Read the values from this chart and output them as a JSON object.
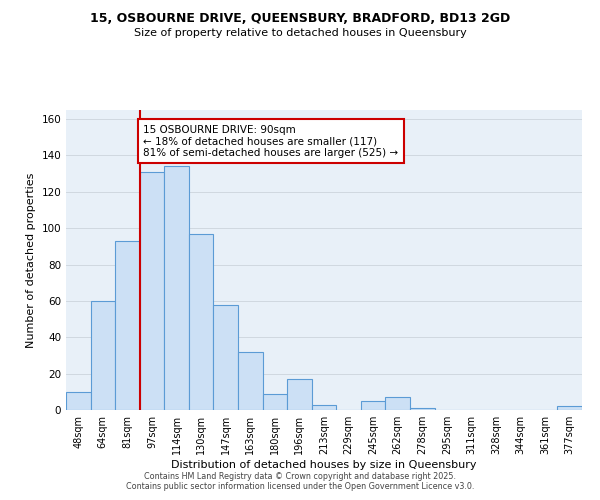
{
  "title_line1": "15, OSBOURNE DRIVE, QUEENSBURY, BRADFORD, BD13 2GD",
  "title_line2": "Size of property relative to detached houses in Queensbury",
  "xlabel": "Distribution of detached houses by size in Queensbury",
  "ylabel": "Number of detached properties",
  "bar_labels": [
    "48sqm",
    "64sqm",
    "81sqm",
    "97sqm",
    "114sqm",
    "130sqm",
    "147sqm",
    "163sqm",
    "180sqm",
    "196sqm",
    "213sqm",
    "229sqm",
    "245sqm",
    "262sqm",
    "278sqm",
    "295sqm",
    "311sqm",
    "328sqm",
    "344sqm",
    "361sqm",
    "377sqm"
  ],
  "bar_values": [
    10,
    60,
    93,
    131,
    134,
    97,
    58,
    32,
    9,
    17,
    3,
    0,
    5,
    7,
    1,
    0,
    0,
    0,
    0,
    0,
    2
  ],
  "bar_color": "#cce0f5",
  "bar_edge_color": "#5b9bd5",
  "vline_color": "#cc0000",
  "ylim": [
    0,
    165
  ],
  "yticks": [
    0,
    20,
    40,
    60,
    80,
    100,
    120,
    140,
    160
  ],
  "annotation_text": "15 OSBOURNE DRIVE: 90sqm\n← 18% of detached houses are smaller (117)\n81% of semi-detached houses are larger (525) →",
  "annotation_box_edge": "#cc0000",
  "footer_line1": "Contains HM Land Registry data © Crown copyright and database right 2025.",
  "footer_line2": "Contains public sector information licensed under the Open Government Licence v3.0.",
  "background_color": "#ffffff",
  "plot_bg_color": "#e8f0f8",
  "grid_color": "#d0d8e0"
}
